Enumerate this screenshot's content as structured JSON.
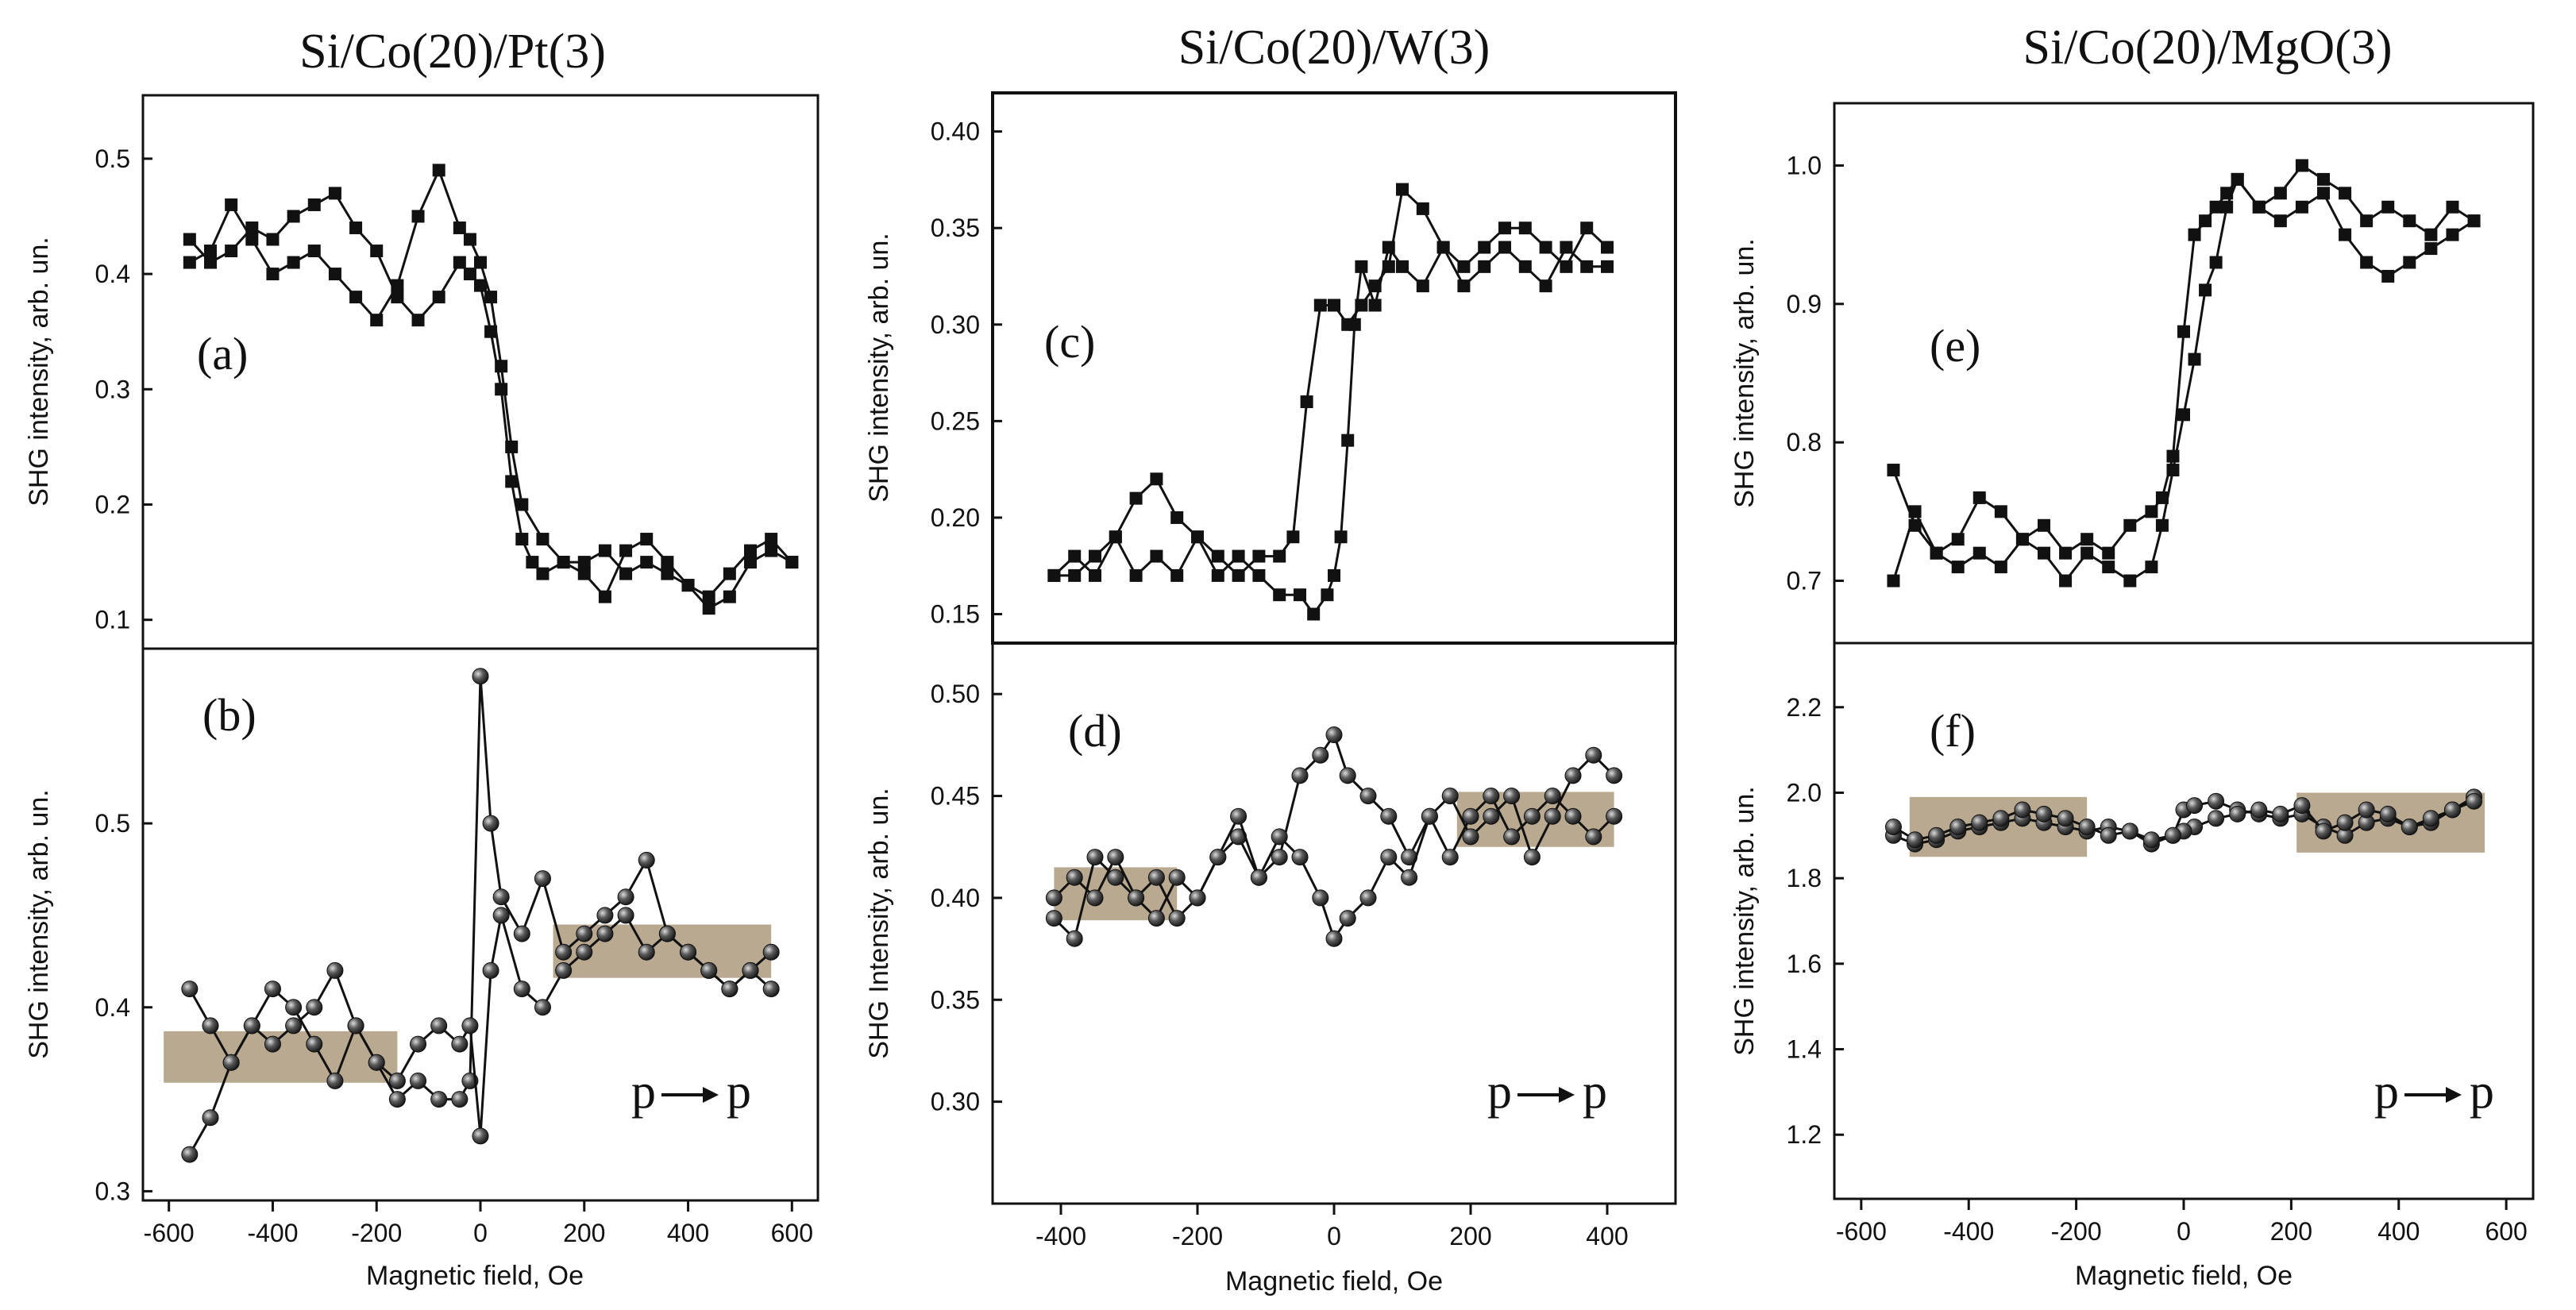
{
  "colors": {
    "ink": "#111111",
    "band": "#b5a48a",
    "ball": "#2a2a2a",
    "ball_hi": "#d8d8d8"
  },
  "polarization": {
    "from": "p",
    "to": "p"
  },
  "chart_data": [
    {
      "id": "a",
      "type": "line",
      "marker": "square",
      "label": "(a)",
      "title": "Si/Co(20)/Pt(3)",
      "xlabel": "",
      "ylabel": "SHG intensity, arb. un.",
      "xlim": [
        -650,
        650
      ],
      "ylim": [
        0.075,
        0.555
      ],
      "xticks": [],
      "yticks": [
        0.1,
        0.2,
        0.3,
        0.4,
        0.5
      ],
      "series": [
        {
          "name": "forward sweep",
          "x": [
            -560,
            -520,
            -480,
            -440,
            -400,
            -360,
            -320,
            -280,
            -240,
            -200,
            -160,
            -120,
            -80,
            -40,
            -20,
            0,
            20,
            40,
            60,
            80,
            100,
            120,
            160,
            200,
            240,
            280,
            320,
            360,
            400,
            440,
            480,
            520,
            560,
            600
          ],
          "y": [
            0.43,
            0.41,
            0.42,
            0.44,
            0.43,
            0.45,
            0.46,
            0.47,
            0.44,
            0.42,
            0.38,
            0.36,
            0.38,
            0.41,
            0.4,
            0.39,
            0.35,
            0.3,
            0.22,
            0.17,
            0.15,
            0.14,
            0.15,
            0.15,
            0.16,
            0.14,
            0.15,
            0.14,
            0.13,
            0.11,
            0.12,
            0.15,
            0.16,
            0.15
          ]
        },
        {
          "name": "backward sweep",
          "x": [
            600,
            560,
            520,
            480,
            440,
            400,
            360,
            320,
            280,
            240,
            200,
            160,
            120,
            80,
            60,
            40,
            20,
            0,
            -20,
            -40,
            -80,
            -120,
            -160,
            -200,
            -240,
            -280,
            -320,
            -360,
            -400,
            -440,
            -480,
            -520,
            -560
          ],
          "y": [
            0.15,
            0.17,
            0.16,
            0.14,
            0.12,
            0.13,
            0.15,
            0.17,
            0.16,
            0.12,
            0.14,
            0.15,
            0.17,
            0.2,
            0.25,
            0.32,
            0.38,
            0.41,
            0.43,
            0.44,
            0.49,
            0.45,
            0.39,
            0.36,
            0.38,
            0.4,
            0.42,
            0.41,
            0.4,
            0.43,
            0.46,
            0.42,
            0.41
          ]
        }
      ]
    },
    {
      "id": "b",
      "type": "line",
      "marker": "ball",
      "label": "(b)",
      "title": "",
      "xlabel": "Magnetic field, Oe",
      "ylabel": "SHG intensity, arb. un.",
      "xlim": [
        -650,
        650
      ],
      "ylim": [
        0.295,
        0.595
      ],
      "xticks": [
        -600,
        -400,
        -200,
        0,
        200,
        400,
        600
      ],
      "yticks": [
        0.3,
        0.4,
        0.5
      ],
      "bands": [
        {
          "x": [
            -610,
            -160
          ],
          "y": [
            0.359,
            0.387
          ]
        },
        {
          "x": [
            140,
            560
          ],
          "y": [
            0.416,
            0.445
          ]
        }
      ],
      "series": [
        {
          "name": "forward sweep",
          "x": [
            -560,
            -520,
            -480,
            -440,
            -400,
            -360,
            -320,
            -280,
            -240,
            -200,
            -160,
            -120,
            -80,
            -40,
            -20,
            0,
            20,
            40,
            80,
            120,
            160,
            200,
            240,
            280,
            320,
            360,
            400,
            440,
            480,
            520,
            560
          ],
          "y": [
            0.32,
            0.34,
            0.37,
            0.39,
            0.41,
            0.4,
            0.38,
            0.36,
            0.39,
            0.37,
            0.35,
            0.36,
            0.35,
            0.35,
            0.36,
            0.58,
            0.5,
            0.46,
            0.44,
            0.47,
            0.43,
            0.44,
            0.45,
            0.46,
            0.48,
            0.44,
            0.43,
            0.42,
            0.41,
            0.42,
            0.43
          ]
        },
        {
          "name": "backward sweep",
          "x": [
            560,
            520,
            480,
            440,
            400,
            360,
            320,
            280,
            240,
            200,
            160,
            120,
            80,
            40,
            20,
            0,
            -20,
            -40,
            -80,
            -120,
            -160,
            -200,
            -240,
            -280,
            -320,
            -360,
            -400,
            -440,
            -480,
            -520,
            -560
          ],
          "y": [
            0.41,
            0.42,
            0.41,
            0.42,
            0.43,
            0.44,
            0.43,
            0.45,
            0.44,
            0.43,
            0.42,
            0.4,
            0.41,
            0.45,
            0.42,
            0.33,
            0.39,
            0.38,
            0.39,
            0.38,
            0.36,
            0.37,
            0.39,
            0.42,
            0.4,
            0.39,
            0.38,
            0.39,
            0.37,
            0.39,
            0.41
          ]
        }
      ]
    },
    {
      "id": "c",
      "type": "line",
      "marker": "square",
      "label": "(c)",
      "title": "Si/Co(20)/W(3)",
      "xlabel": "",
      "ylabel": "SHG intensity, arb. un.",
      "xlim": [
        -500,
        500
      ],
      "ylim": [
        0.135,
        0.42
      ],
      "xticks": [],
      "yticks": [
        0.15,
        0.2,
        0.25,
        0.3,
        0.35,
        0.4
      ],
      "series": [
        {
          "name": "forward sweep",
          "x": [
            -410,
            -380,
            -350,
            -320,
            -290,
            -260,
            -230,
            -200,
            -170,
            -140,
            -110,
            -80,
            -50,
            -30,
            -10,
            0,
            10,
            20,
            30,
            40,
            60,
            80,
            100,
            130,
            160,
            190,
            220,
            250,
            280,
            310,
            340,
            370,
            400
          ],
          "y": [
            0.17,
            0.18,
            0.17,
            0.19,
            0.17,
            0.18,
            0.17,
            0.19,
            0.17,
            0.18,
            0.17,
            0.16,
            0.16,
            0.15,
            0.16,
            0.17,
            0.19,
            0.24,
            0.3,
            0.33,
            0.31,
            0.34,
            0.33,
            0.32,
            0.34,
            0.32,
            0.33,
            0.34,
            0.33,
            0.32,
            0.34,
            0.33,
            0.33
          ]
        },
        {
          "name": "backward sweep",
          "x": [
            400,
            370,
            340,
            310,
            280,
            250,
            220,
            190,
            160,
            130,
            100,
            80,
            60,
            40,
            20,
            0,
            -20,
            -40,
            -60,
            -80,
            -110,
            -140,
            -170,
            -200,
            -230,
            -260,
            -290,
            -320,
            -350,
            -380,
            -410
          ],
          "y": [
            0.34,
            0.35,
            0.33,
            0.34,
            0.35,
            0.35,
            0.34,
            0.33,
            0.34,
            0.36,
            0.37,
            0.33,
            0.32,
            0.31,
            0.3,
            0.31,
            0.31,
            0.26,
            0.19,
            0.18,
            0.18,
            0.17,
            0.18,
            0.19,
            0.2,
            0.22,
            0.21,
            0.19,
            0.18,
            0.17,
            0.17
          ]
        }
      ]
    },
    {
      "id": "d",
      "type": "line",
      "marker": "ball",
      "label": "(d)",
      "title": "",
      "xlabel": "Magnetic field, Oe",
      "ylabel": "SHG Intensity, arb. un.",
      "xlim": [
        -500,
        500
      ],
      "ylim": [
        0.25,
        0.525
      ],
      "xticks": [
        -400,
        -200,
        0,
        200,
        400
      ],
      "yticks": [
        0.3,
        0.35,
        0.4,
        0.45,
        0.5
      ],
      "bands": [
        {
          "x": [
            -410,
            -230
          ],
          "y": [
            0.389,
            0.415
          ]
        },
        {
          "x": [
            180,
            410
          ],
          "y": [
            0.425,
            0.452
          ]
        }
      ],
      "series": [
        {
          "name": "forward sweep",
          "x": [
            -410,
            -380,
            -350,
            -320,
            -290,
            -260,
            -230,
            -200,
            -170,
            -140,
            -110,
            -80,
            -50,
            -20,
            0,
            20,
            50,
            80,
            110,
            140,
            170,
            200,
            230,
            260,
            290,
            320,
            350,
            380,
            410
          ],
          "y": [
            0.39,
            0.38,
            0.42,
            0.41,
            0.4,
            0.39,
            0.41,
            0.4,
            0.42,
            0.43,
            0.41,
            0.42,
            0.46,
            0.47,
            0.48,
            0.46,
            0.45,
            0.44,
            0.42,
            0.44,
            0.45,
            0.43,
            0.44,
            0.45,
            0.42,
            0.44,
            0.46,
            0.47,
            0.46
          ]
        },
        {
          "name": "backward sweep",
          "x": [
            410,
            380,
            350,
            320,
            290,
            260,
            230,
            200,
            170,
            140,
            110,
            80,
            50,
            20,
            0,
            -20,
            -50,
            -80,
            -110,
            -140,
            -170,
            -200,
            -230,
            -260,
            -290,
            -320,
            -350,
            -380,
            -410
          ],
          "y": [
            0.44,
            0.43,
            0.44,
            0.45,
            0.44,
            0.43,
            0.45,
            0.44,
            0.42,
            0.44,
            0.41,
            0.42,
            0.4,
            0.39,
            0.38,
            0.4,
            0.42,
            0.43,
            0.41,
            0.44,
            0.42,
            0.4,
            0.39,
            0.41,
            0.4,
            0.42,
            0.4,
            0.41,
            0.4
          ]
        }
      ]
    },
    {
      "id": "e",
      "type": "line",
      "marker": "square",
      "label": "(e)",
      "title": "Si/Co(20)/MgO(3)",
      "xlabel": "",
      "ylabel": "SHG intensity, arb. un.",
      "xlim": [
        -650,
        650
      ],
      "ylim": [
        0.655,
        1.045
      ],
      "xticks": [],
      "yticks": [
        0.7,
        0.8,
        0.9,
        1.0
      ],
      "series": [
        {
          "name": "forward sweep",
          "x": [
            -540,
            -500,
            -460,
            -420,
            -380,
            -340,
            -300,
            -260,
            -220,
            -180,
            -140,
            -100,
            -60,
            -40,
            -20,
            0,
            20,
            40,
            60,
            80,
            100,
            140,
            180,
            220,
            260,
            300,
            340,
            380,
            420,
            460,
            500,
            540
          ],
          "y": [
            0.7,
            0.75,
            0.72,
            0.71,
            0.72,
            0.71,
            0.73,
            0.72,
            0.7,
            0.72,
            0.71,
            0.7,
            0.71,
            0.74,
            0.78,
            0.82,
            0.86,
            0.91,
            0.93,
            0.97,
            0.99,
            0.97,
            0.96,
            0.97,
            0.98,
            0.95,
            0.93,
            0.92,
            0.93,
            0.94,
            0.95,
            0.96
          ]
        },
        {
          "name": "backward sweep",
          "x": [
            540,
            500,
            460,
            420,
            380,
            340,
            300,
            260,
            220,
            180,
            140,
            100,
            80,
            60,
            40,
            20,
            0,
            -20,
            -40,
            -60,
            -100,
            -140,
            -180,
            -220,
            -260,
            -300,
            -340,
            -380,
            -420,
            -460,
            -500,
            -540
          ],
          "y": [
            0.96,
            0.97,
            0.95,
            0.96,
            0.97,
            0.96,
            0.98,
            0.99,
            1.0,
            0.98,
            0.97,
            0.99,
            0.98,
            0.97,
            0.96,
            0.95,
            0.88,
            0.79,
            0.76,
            0.75,
            0.74,
            0.72,
            0.73,
            0.72,
            0.74,
            0.73,
            0.75,
            0.76,
            0.73,
            0.72,
            0.74,
            0.78
          ]
        }
      ]
    },
    {
      "id": "f",
      "type": "line",
      "marker": "ball",
      "label": "(f)",
      "title": "",
      "xlabel": "Magnetic field, Oe",
      "ylabel": "SHG intensity, arb. un.",
      "xlim": [
        -650,
        650
      ],
      "ylim": [
        1.05,
        2.35
      ],
      "xticks": [
        -600,
        -400,
        -200,
        0,
        200,
        400,
        600
      ],
      "yticks": [
        1.2,
        1.4,
        1.6,
        1.8,
        2.0,
        2.2
      ],
      "bands": [
        {
          "x": [
            -510,
            -180
          ],
          "y": [
            1.85,
            1.99
          ]
        },
        {
          "x": [
            210,
            560
          ],
          "y": [
            1.86,
            2.0
          ]
        }
      ],
      "series": [
        {
          "name": "forward sweep",
          "x": [
            -540,
            -500,
            -460,
            -420,
            -380,
            -340,
            -300,
            -260,
            -220,
            -180,
            -140,
            -100,
            -60,
            -20,
            0,
            20,
            60,
            100,
            140,
            180,
            220,
            260,
            300,
            340,
            380,
            420,
            460,
            500,
            540
          ],
          "y": [
            1.9,
            1.88,
            1.89,
            1.91,
            1.92,
            1.93,
            1.94,
            1.93,
            1.92,
            1.91,
            1.92,
            1.91,
            1.88,
            1.9,
            1.96,
            1.97,
            1.98,
            1.96,
            1.95,
            1.94,
            1.95,
            1.92,
            1.9,
            1.93,
            1.94,
            1.92,
            1.93,
            1.96,
            1.99
          ]
        },
        {
          "name": "backward sweep",
          "x": [
            540,
            500,
            460,
            420,
            380,
            340,
            300,
            260,
            220,
            180,
            140,
            100,
            60,
            20,
            0,
            -20,
            -60,
            -100,
            -140,
            -180,
            -220,
            -260,
            -300,
            -340,
            -380,
            -420,
            -460,
            -500,
            -540
          ],
          "y": [
            1.98,
            1.96,
            1.94,
            1.92,
            1.95,
            1.96,
            1.93,
            1.91,
            1.97,
            1.95,
            1.96,
            1.95,
            1.94,
            1.92,
            1.91,
            1.9,
            1.89,
            1.91,
            1.9,
            1.92,
            1.94,
            1.95,
            1.96,
            1.94,
            1.93,
            1.92,
            1.9,
            1.89,
            1.92
          ]
        }
      ]
    }
  ]
}
